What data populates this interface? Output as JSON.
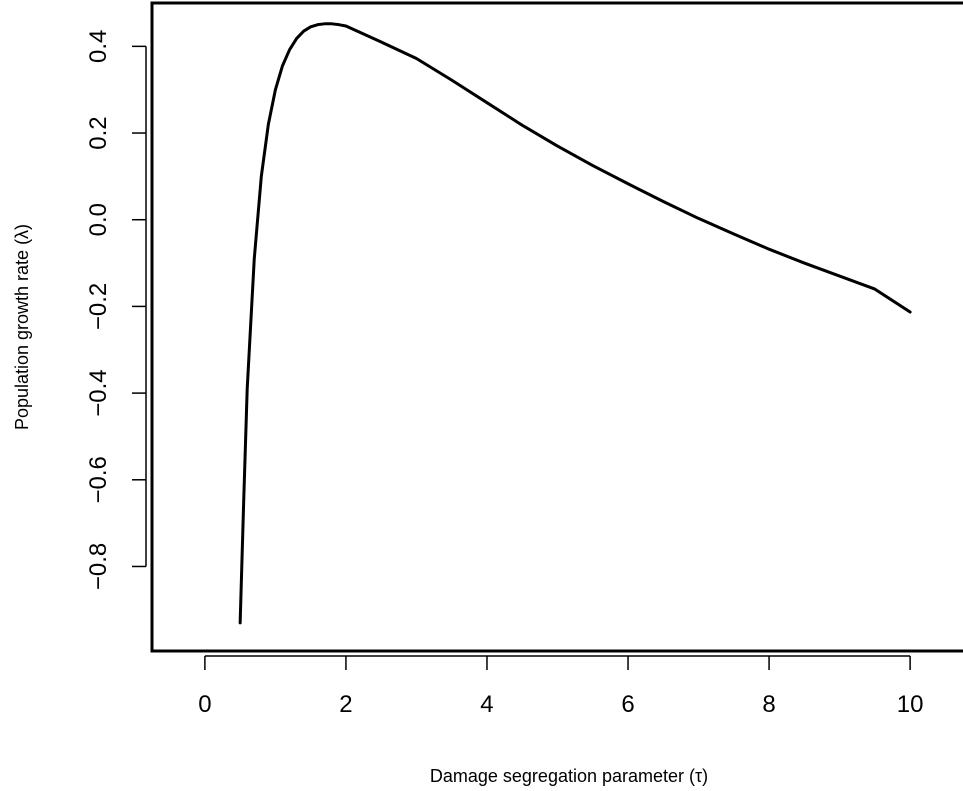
{
  "chart_data": {
    "type": "line",
    "xlabel": "Damage segregation parameter (τ)",
    "ylabel": "Population growth rate (λ)",
    "xlim": [
      -0.75,
      10.75
    ],
    "ylim": [
      -0.995,
      0.5
    ],
    "x_ticks": [
      0,
      2,
      4,
      6,
      8,
      10
    ],
    "y_ticks": [
      -0.8,
      -0.6,
      -0.4,
      -0.2,
      0.0,
      0.2,
      0.4
    ],
    "x_tick_labels": [
      "0",
      "2",
      "4",
      "6",
      "8",
      "10"
    ],
    "y_tick_labels": [
      "−0.8",
      "−0.6",
      "−0.4",
      "−0.2",
      "0.0",
      "0.2",
      "0.4"
    ],
    "grid": false,
    "legend": "none",
    "series": [
      {
        "color": "#000000",
        "x": [
          0.5,
          0.55,
          0.6,
          0.7,
          0.8,
          0.9,
          1.0,
          1.1,
          1.2,
          1.3,
          1.4,
          1.5,
          1.6,
          1.7,
          1.8,
          1.9,
          2.0,
          2.5,
          3.0,
          3.5,
          4.0,
          4.5,
          5.0,
          5.5,
          6.0,
          6.5,
          7.0,
          7.5,
          8.0,
          8.5,
          9.0,
          9.5,
          10.0
        ],
        "y": [
          -0.93,
          -0.65,
          -0.39,
          -0.09,
          0.1,
          0.22,
          0.3,
          0.355,
          0.392,
          0.418,
          0.435,
          0.445,
          0.45,
          0.452,
          0.452,
          0.45,
          0.447,
          0.41,
          0.372,
          0.322,
          0.27,
          0.218,
          0.17,
          0.125,
          0.083,
          0.042,
          0.003,
          -0.033,
          -0.068,
          -0.1,
          -0.13,
          -0.16,
          -0.213
        ]
      }
    ]
  }
}
